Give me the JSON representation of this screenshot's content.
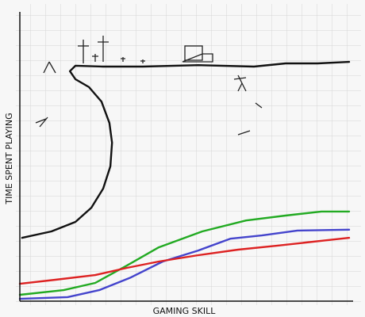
{
  "chart_data": {
    "type": "line",
    "xlabel": "GAMING SKILL",
    "ylabel": "TIME SPENT PLAYING",
    "xlim": [
      0,
      100
    ],
    "ylim": [
      0,
      100
    ],
    "series": [
      {
        "color": "#111111",
        "x": [
          0.7,
          9.6,
          16.9,
          21.7,
          25.3,
          27.5,
          28,
          27.2,
          24.8,
          21,
          16.9,
          15.2,
          16.9,
          25.3,
          37.3,
          54.2,
          71.1,
          80.7,
          90.4,
          100
        ],
        "values": [
          21.9,
          24.1,
          27.4,
          32.3,
          38.9,
          46.6,
          54.8,
          61.6,
          69,
          74,
          76.7,
          79.5,
          81.4,
          81.1,
          81.1,
          81.6,
          81.1,
          82.2,
          82.2,
          82.7
        ]
      },
      {
        "color": "#22aa22",
        "x": [
          0,
          13.3,
          22.9,
          32.5,
          42.2,
          55.4,
          68.7,
          80.7,
          91.6,
          100
        ],
        "values": [
          2.2,
          3.8,
          6.3,
          12.3,
          18.6,
          24.1,
          27.9,
          29.6,
          31,
          31
        ]
      },
      {
        "color": "#4444cc",
        "x": [
          0,
          14.5,
          24.1,
          33.7,
          43.4,
          54.2,
          63.9,
          73.5,
          84.3,
          100
        ],
        "values": [
          0.8,
          1.4,
          3.8,
          8.2,
          13.7,
          17.5,
          21.6,
          22.7,
          24.4,
          24.7
        ]
      },
      {
        "color": "#dd2222",
        "x": [
          0,
          10.8,
          22.9,
          32.5,
          42.2,
          54.2,
          66.3,
          78.3,
          100
        ],
        "values": [
          6,
          7.4,
          9,
          11.5,
          13.7,
          15.9,
          17.8,
          19.2,
          21.9
        ]
      }
    ]
  }
}
